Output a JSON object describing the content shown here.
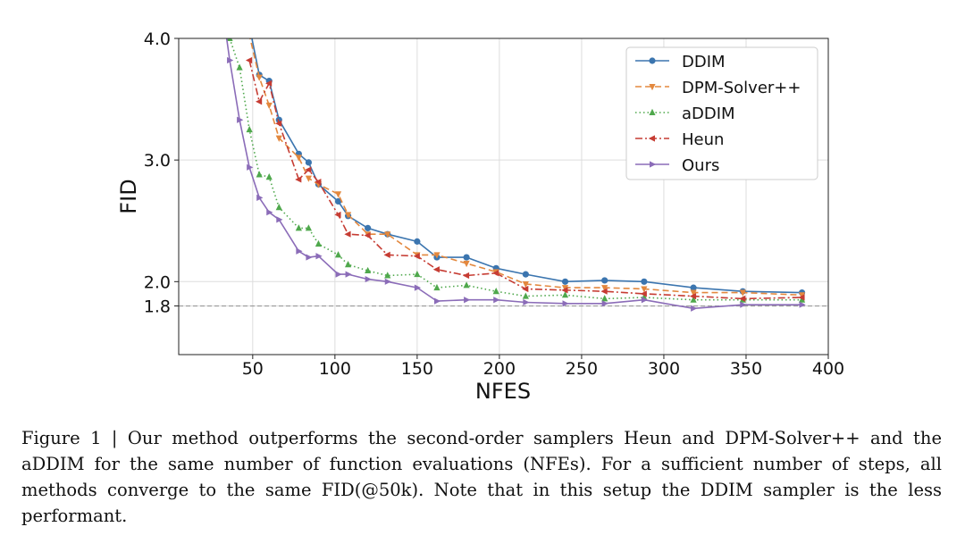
{
  "chart_data": {
    "type": "line",
    "xlabel": "NFES",
    "ylabel": "FID",
    "xlim": [
      5,
      400
    ],
    "ylim": [
      1.4,
      4.0
    ],
    "xticks": [
      50,
      100,
      150,
      200,
      250,
      300,
      350,
      400
    ],
    "xtick_labels": [
      "50",
      "100",
      "150",
      "200",
      "250",
      "300",
      "350",
      "400"
    ],
    "yticks": [
      4.0,
      3.0,
      2.0,
      1.8
    ],
    "ytick_labels": [
      "4.0",
      "3.0",
      "2.0",
      "1.8"
    ],
    "grid": true,
    "legend_position": "top-right",
    "reference_line": {
      "y": 1.8,
      "color": "#999999",
      "style": "dashed"
    },
    "series": [
      {
        "name": "DDIM",
        "color": "#3b75af",
        "line": "solid",
        "marker": "circle",
        "x": [
          45,
          54,
          60,
          66,
          78,
          84,
          90,
          102,
          108,
          120,
          132,
          150,
          162,
          180,
          198,
          216,
          240,
          264,
          288,
          318,
          348,
          384
        ],
        "y": [
          4.3,
          3.7,
          3.65,
          3.33,
          3.05,
          2.98,
          2.8,
          2.66,
          2.54,
          2.44,
          2.39,
          2.33,
          2.2,
          2.2,
          2.11,
          2.06,
          2.0,
          2.01,
          2.0,
          1.95,
          1.92,
          1.91
        ]
      },
      {
        "name": "DPM-Solver++",
        "color": "#e3883e",
        "line": "dashed",
        "marker": "triangle-down",
        "x": [
          45,
          54,
          60,
          66,
          78,
          84,
          90,
          102,
          108,
          120,
          132,
          150,
          162,
          180,
          198,
          216,
          240,
          264,
          288,
          318,
          348,
          384
        ],
        "y": [
          4.2,
          3.68,
          3.45,
          3.18,
          3.02,
          2.85,
          2.8,
          2.72,
          2.55,
          2.39,
          2.39,
          2.22,
          2.22,
          2.15,
          2.08,
          1.98,
          1.95,
          1.95,
          1.94,
          1.91,
          1.91,
          1.89
        ]
      },
      {
        "name": "aDDIM",
        "color": "#4fa84c",
        "line": "dotted",
        "marker": "triangle-up",
        "x": [
          36,
          42,
          48,
          54,
          60,
          66,
          78,
          84,
          90,
          102,
          108,
          120,
          132,
          150,
          162,
          180,
          198,
          216,
          240,
          264,
          288,
          318,
          348,
          384
        ],
        "y": [
          4.0,
          3.76,
          3.25,
          2.88,
          2.86,
          2.61,
          2.44,
          2.44,
          2.31,
          2.22,
          2.14,
          2.09,
          2.05,
          2.06,
          1.95,
          1.97,
          1.92,
          1.88,
          1.89,
          1.86,
          1.87,
          1.85,
          1.85,
          1.85
        ]
      },
      {
        "name": "Heun",
        "color": "#c63c33",
        "line": "dashdot",
        "marker": "triangle-left",
        "x": [
          48,
          54,
          60,
          66,
          78,
          84,
          90,
          102,
          108,
          120,
          132,
          150,
          162,
          180,
          198,
          216,
          240,
          264,
          288,
          318,
          348,
          384
        ],
        "y": [
          3.82,
          3.48,
          3.63,
          3.3,
          2.84,
          2.92,
          2.82,
          2.55,
          2.39,
          2.38,
          2.22,
          2.21,
          2.1,
          2.05,
          2.07,
          1.94,
          1.93,
          1.92,
          1.9,
          1.88,
          1.86,
          1.87
        ]
      },
      {
        "name": "Ours",
        "color": "#8b6cb8",
        "line": "solid",
        "marker": "triangle-right",
        "x": [
          30,
          36,
          42,
          48,
          54,
          60,
          66,
          78,
          84,
          90,
          102,
          108,
          120,
          132,
          150,
          162,
          180,
          198,
          216,
          240,
          264,
          288,
          318,
          348,
          384
        ],
        "y": [
          4.4,
          3.82,
          3.33,
          2.94,
          2.69,
          2.57,
          2.51,
          2.25,
          2.2,
          2.21,
          2.06,
          2.06,
          2.02,
          2.0,
          1.95,
          1.84,
          1.85,
          1.85,
          1.83,
          1.82,
          1.82,
          1.85,
          1.78,
          1.81,
          1.81
        ]
      }
    ]
  },
  "caption": {
    "text": "Figure 1 | Our method outperforms the second-order samplers Heun and DPM-Solver++ and the aDDIM for the same number of function evaluations (NFEs). For a sufficient number of steps, all methods converge to the same FID(@50k). Note that in this setup the DDIM sampler is the less performant."
  }
}
